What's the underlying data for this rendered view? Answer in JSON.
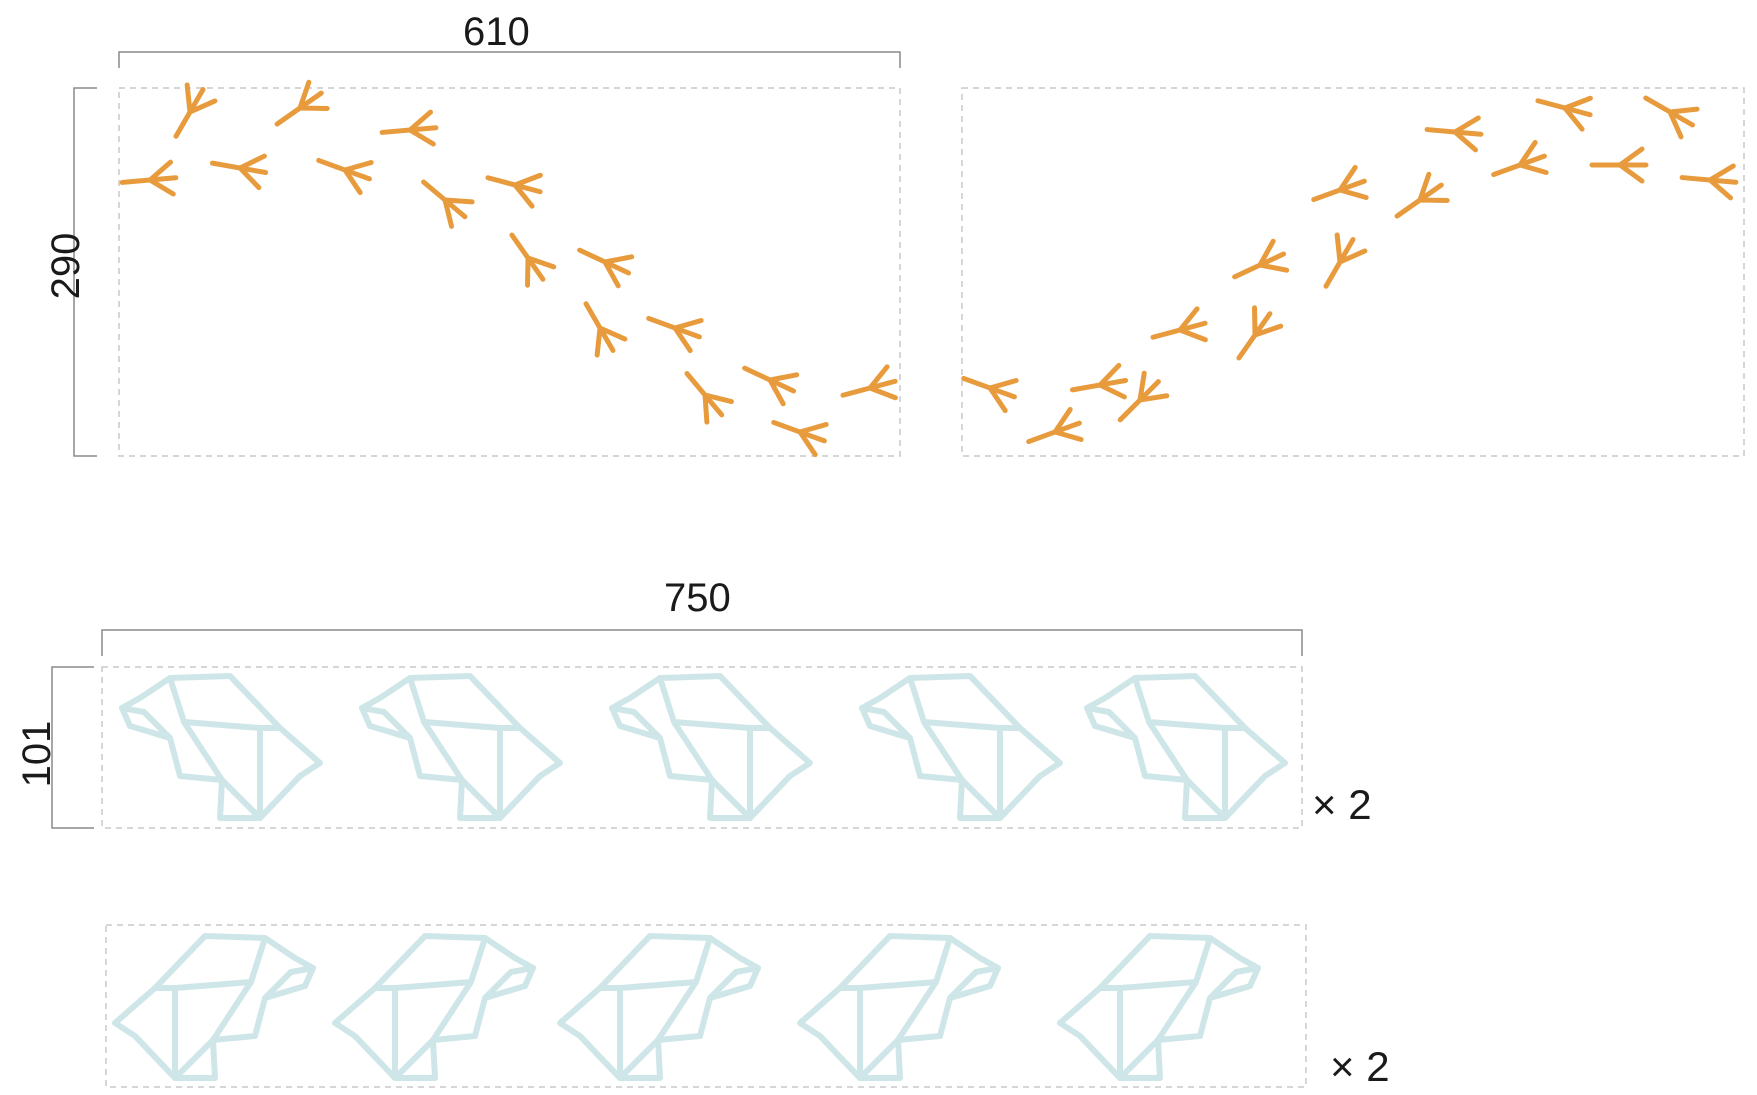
{
  "dimensions": {
    "footprints_width": "610",
    "footprints_height": "290",
    "elephants_width": "750",
    "elephants_height": "101"
  },
  "multipliers": {
    "elephant_row_1": "× 2",
    "elephant_row_2": "× 2"
  },
  "colors": {
    "footprint": "#e89b3c",
    "elephant": "#cfe6e8",
    "dim_line": "#8a8a8a",
    "dashed_border": "#c8c8c8"
  },
  "icons": {
    "footprint": "bird-footprint-icon",
    "elephant": "origami-elephant-icon"
  }
}
